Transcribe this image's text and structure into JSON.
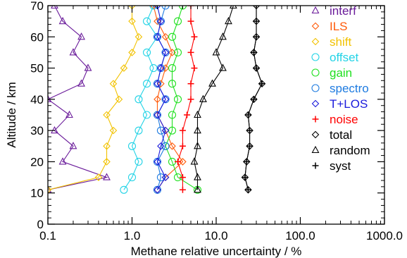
{
  "colors": {
    "interf": "#6a1b9a",
    "ILS": "#ff5a0a",
    "shift": "#f2c200",
    "offset": "#22d3e6",
    "gain": "#1fe01f",
    "spectro": "#1e7be0",
    "T+LOS": "#1a1adc",
    "noise": "#ff0000",
    "total": "#000000",
    "random": "#000000",
    "syst": "#000000"
  },
  "chart_data": {
    "type": "line",
    "x_scale": "log",
    "xlabel": "Methane relative uncertainty / %",
    "ylabel": "Altitude / km",
    "xlim": [
      0.1,
      1000
    ],
    "ylim": [
      0,
      70
    ],
    "x_ticks": [
      0.1,
      1,
      10,
      100,
      1000
    ],
    "x_tick_labels": [
      "0.1",
      "1.0",
      "10.0",
      "100.0",
      "1000.0"
    ],
    "y_ticks": [
      0,
      10,
      20,
      30,
      40,
      50,
      60,
      70
    ],
    "y_tick_labels": [
      "0",
      "10",
      "20",
      "30",
      "40",
      "50",
      "60",
      "70"
    ],
    "legend_position": "right",
    "series": [
      {
        "name": "interf",
        "marker": "triangle",
        "altitudes": [
          11,
          15,
          20,
          25,
          30,
          35,
          40,
          45,
          50,
          55,
          60,
          65,
          70
        ],
        "values": [
          0.1,
          0.5,
          0.15,
          0.2,
          0.12,
          0.18,
          0.1,
          0.25,
          0.3,
          0.2,
          0.25,
          0.15,
          0.12
        ]
      },
      {
        "name": "ILS",
        "marker": "diamond",
        "altitudes": [
          11,
          15,
          20,
          25,
          30,
          35,
          40,
          45,
          50,
          55,
          60,
          65,
          70
        ],
        "values": [
          2.0,
          2.5,
          4.0,
          3.0,
          2.5,
          2.0,
          2.0,
          2.2,
          2.5,
          3.0,
          2.5,
          2.0,
          1.8
        ]
      },
      {
        "name": "shift",
        "marker": "diamond",
        "altitudes": [
          11,
          15,
          20,
          25,
          30,
          35,
          40,
          45,
          50,
          55,
          60,
          65,
          70
        ],
        "values": [
          0.1,
          0.4,
          0.5,
          0.5,
          0.6,
          0.5,
          0.7,
          0.6,
          0.8,
          1.0,
          1.2,
          1.0,
          1.0
        ]
      },
      {
        "name": "offset",
        "marker": "circle",
        "altitudes": [
          11,
          15,
          20,
          25,
          30,
          35,
          40,
          45,
          50,
          55,
          60,
          65,
          70
        ],
        "values": [
          0.8,
          1.0,
          1.2,
          1.0,
          1.2,
          1.5,
          1.2,
          1.5,
          1.8,
          1.5,
          2.0,
          1.5,
          1.8
        ]
      },
      {
        "name": "gain",
        "marker": "circle",
        "altitudes": [
          11,
          15,
          20,
          25,
          30,
          35,
          40,
          45,
          50,
          55,
          60,
          65,
          70
        ],
        "values": [
          6.0,
          3.5,
          3.0,
          2.5,
          3.0,
          3.0,
          3.5,
          3.0,
          3.0,
          3.5,
          3.0,
          3.5,
          4.0
        ]
      },
      {
        "name": "spectro",
        "marker": "circle",
        "altitudes": [
          11,
          15,
          20,
          25,
          30,
          35,
          40,
          45,
          50,
          55,
          60,
          65,
          70
        ],
        "values": [
          2.0,
          2.2,
          2.0,
          2.5,
          2.2,
          2.0,
          2.5,
          2.0,
          2.2,
          2.5,
          2.0,
          2.2,
          2.5
        ]
      },
      {
        "name": "T+LOS",
        "marker": "diamond",
        "altitudes": [
          11,
          15,
          20,
          25,
          30,
          35,
          40,
          45,
          50,
          55,
          60,
          65,
          70
        ],
        "values": [
          2.0,
          2.5,
          2.0,
          2.2,
          2.5,
          2.0,
          2.5,
          2.0,
          2.2,
          2.5,
          2.0,
          2.2,
          2.0
        ]
      },
      {
        "name": "noise",
        "marker": "plus",
        "altitudes": [
          11,
          15,
          20,
          25,
          30,
          35,
          40,
          45,
          50,
          55,
          60,
          65,
          70
        ],
        "values": [
          4.0,
          4.0,
          3.5,
          4.0,
          4.0,
          4.5,
          5.0,
          5.0,
          5.5,
          5.0,
          5.5,
          5.0,
          5.0
        ]
      },
      {
        "name": "total",
        "marker": "diamond",
        "altitudes": [
          11,
          15,
          20,
          25,
          30,
          35,
          40,
          45,
          50,
          55,
          60,
          65,
          70
        ],
        "values": [
          24,
          22,
          23,
          25,
          25,
          24,
          28,
          35,
          30,
          28,
          30,
          30,
          30
        ]
      },
      {
        "name": "random",
        "marker": "triangle",
        "altitudes": [
          11,
          15,
          20,
          25,
          30,
          35,
          40,
          45,
          50,
          55,
          60,
          65,
          70
        ],
        "values": [
          6.0,
          6.0,
          5.5,
          6.0,
          6.0,
          6.0,
          7.0,
          9.0,
          12.0,
          10.0,
          12.0,
          14.0,
          16.0
        ]
      },
      {
        "name": "syst",
        "marker": "plus",
        "altitudes": [
          11,
          15,
          20,
          25,
          30,
          35,
          40,
          45,
          50,
          55,
          60,
          65,
          70
        ],
        "values": [
          24,
          22,
          23,
          25,
          25,
          24,
          28,
          35,
          30,
          28,
          30,
          30,
          30
        ]
      }
    ]
  }
}
